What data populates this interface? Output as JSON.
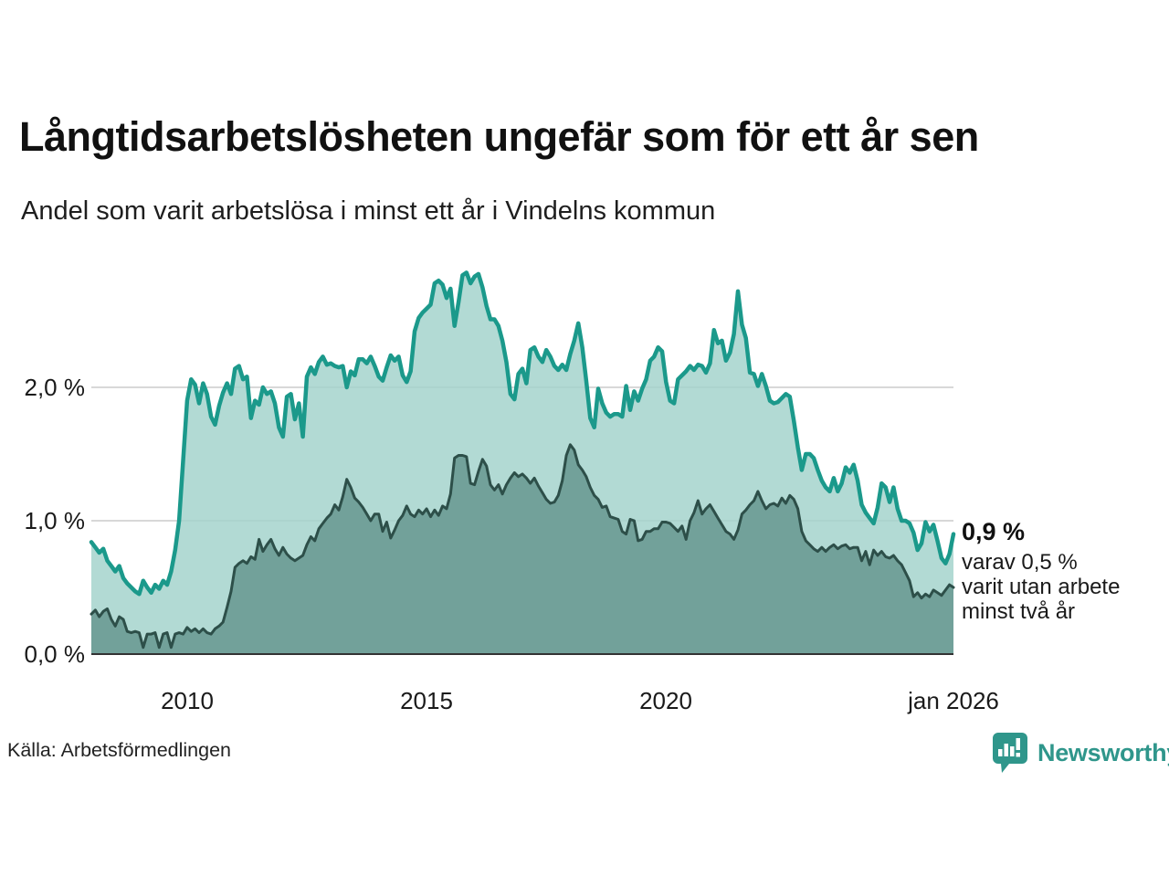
{
  "title": "Långtidsarbetslösheten ungefär som för ett år sen",
  "subtitle": "Andel som varit arbetslösa i minst ett år i Vindelns kommun",
  "source": "Källa: Arbetsförmedlingen",
  "brand": {
    "name": "Newsworthy",
    "color": "#2f968b"
  },
  "annotation": {
    "value_label": "0,9 %",
    "line1": "varav 0,5 %",
    "line2": "varit utan arbete",
    "line3": "minst två år"
  },
  "colors": {
    "total_line": "#1b998b",
    "total_fill": "#a5d4cd",
    "two_year_line": "#2d4f49",
    "two_year_fill": "#6f9e97",
    "grid": "#cccccc",
    "axis": "#333333",
    "text": "#1a1a1a"
  },
  "chart_data": {
    "type": "area",
    "title": "Långtidsarbetslösheten ungefär som för ett år sen",
    "subtitle": "Andel som varit arbetslösa i minst ett år i Vindelns kommun",
    "unit": "%",
    "frequency": "monthly",
    "x_start": "jan 2008",
    "x_end": "jan 2026",
    "ylim": [
      0,
      2.95
    ],
    "grid": "horizontal",
    "legend": "none",
    "y_ticks": [
      {
        "label": "2,0 %",
        "value": 2.0
      },
      {
        "label": "1,0 %",
        "value": 1.0
      },
      {
        "label": "0,0 %",
        "value": 0.0
      }
    ],
    "x_ticks": [
      {
        "label": "2010",
        "index": 24
      },
      {
        "label": "2015",
        "index": 84
      },
      {
        "label": "2020",
        "index": 144
      },
      {
        "label": "jan 2026",
        "index": 216
      }
    ],
    "series": [
      {
        "name": "arbetslösa minst ett år",
        "end_value": 0.9,
        "values": [
          0.84,
          0.8,
          0.76,
          0.79,
          0.7,
          0.66,
          0.62,
          0.66,
          0.57,
          0.53,
          0.5,
          0.47,
          0.45,
          0.55,
          0.5,
          0.46,
          0.52,
          0.49,
          0.55,
          0.52,
          0.62,
          0.78,
          1.0,
          1.45,
          1.9,
          2.06,
          2.02,
          1.88,
          2.03,
          1.95,
          1.78,
          1.72,
          1.86,
          1.96,
          2.03,
          1.95,
          2.14,
          2.16,
          2.06,
          2.08,
          1.77,
          1.9,
          1.87,
          2.0,
          1.95,
          1.97,
          1.88,
          1.7,
          1.63,
          1.93,
          1.95,
          1.76,
          1.88,
          1.63,
          2.08,
          2.15,
          2.1,
          2.19,
          2.23,
          2.17,
          2.18,
          2.16,
          2.15,
          2.16,
          2.0,
          2.12,
          2.09,
          2.21,
          2.21,
          2.18,
          2.23,
          2.16,
          2.08,
          2.05,
          2.15,
          2.24,
          2.2,
          2.23,
          2.09,
          2.04,
          2.12,
          2.42,
          2.52,
          2.56,
          2.59,
          2.62,
          2.78,
          2.8,
          2.77,
          2.67,
          2.74,
          2.46,
          2.64,
          2.84,
          2.86,
          2.78,
          2.83,
          2.85,
          2.75,
          2.61,
          2.51,
          2.51,
          2.46,
          2.35,
          2.19,
          1.95,
          1.91,
          2.1,
          2.14,
          2.03,
          2.28,
          2.3,
          2.23,
          2.19,
          2.28,
          2.23,
          2.16,
          2.13,
          2.17,
          2.13,
          2.25,
          2.35,
          2.48,
          2.3,
          2.05,
          1.77,
          1.7,
          1.99,
          1.88,
          1.81,
          1.78,
          1.8,
          1.8,
          1.78,
          2.01,
          1.83,
          1.97,
          1.9,
          1.99,
          2.06,
          2.2,
          2.23,
          2.3,
          2.27,
          2.04,
          1.9,
          1.88,
          2.06,
          2.09,
          2.12,
          2.16,
          2.13,
          2.17,
          2.16,
          2.11,
          2.18,
          2.43,
          2.33,
          2.35,
          2.2,
          2.26,
          2.4,
          2.72,
          2.47,
          2.37,
          2.11,
          2.1,
          2.01,
          2.1,
          2.01,
          1.9,
          1.88,
          1.89,
          1.92,
          1.95,
          1.93,
          1.75,
          1.55,
          1.38,
          1.5,
          1.5,
          1.47,
          1.38,
          1.3,
          1.25,
          1.22,
          1.32,
          1.22,
          1.28,
          1.4,
          1.36,
          1.42,
          1.3,
          1.12,
          1.06,
          1.02,
          0.98,
          1.1,
          1.28,
          1.25,
          1.14,
          1.25,
          1.09,
          1.0,
          1.0,
          0.98,
          0.91,
          0.78,
          0.83,
          0.99,
          0.92,
          0.97,
          0.85,
          0.72,
          0.68,
          0.75,
          0.9
        ]
      },
      {
        "name": "utan arbete minst två år",
        "end_value": 0.5,
        "values": [
          0.3,
          0.33,
          0.28,
          0.32,
          0.34,
          0.26,
          0.21,
          0.28,
          0.26,
          0.17,
          0.16,
          0.17,
          0.16,
          0.05,
          0.15,
          0.15,
          0.16,
          0.05,
          0.15,
          0.16,
          0.05,
          0.15,
          0.16,
          0.15,
          0.2,
          0.17,
          0.19,
          0.16,
          0.19,
          0.16,
          0.15,
          0.19,
          0.21,
          0.24,
          0.35,
          0.47,
          0.65,
          0.68,
          0.7,
          0.68,
          0.73,
          0.71,
          0.86,
          0.77,
          0.82,
          0.86,
          0.79,
          0.74,
          0.8,
          0.75,
          0.72,
          0.7,
          0.72,
          0.74,
          0.82,
          0.88,
          0.85,
          0.94,
          0.98,
          1.02,
          1.05,
          1.12,
          1.08,
          1.18,
          1.31,
          1.25,
          1.17,
          1.14,
          1.1,
          1.05,
          1.0,
          1.05,
          1.05,
          0.92,
          0.99,
          0.87,
          0.93,
          1.0,
          1.04,
          1.11,
          1.05,
          1.03,
          1.08,
          1.05,
          1.09,
          1.03,
          1.08,
          1.04,
          1.11,
          1.09,
          1.2,
          1.47,
          1.49,
          1.49,
          1.48,
          1.28,
          1.27,
          1.37,
          1.46,
          1.41,
          1.27,
          1.23,
          1.27,
          1.2,
          1.27,
          1.32,
          1.36,
          1.33,
          1.35,
          1.32,
          1.28,
          1.32,
          1.26,
          1.21,
          1.16,
          1.13,
          1.14,
          1.19,
          1.3,
          1.49,
          1.57,
          1.53,
          1.42,
          1.38,
          1.33,
          1.25,
          1.19,
          1.16,
          1.1,
          1.11,
          1.03,
          1.02,
          1.01,
          0.92,
          0.9,
          1.01,
          1.0,
          0.85,
          0.86,
          0.92,
          0.92,
          0.94,
          0.94,
          0.99,
          0.99,
          0.98,
          0.95,
          0.92,
          0.96,
          0.86,
          1.0,
          1.06,
          1.15,
          1.05,
          1.09,
          1.12,
          1.07,
          1.02,
          0.97,
          0.92,
          0.9,
          0.86,
          0.93,
          1.05,
          1.08,
          1.12,
          1.15,
          1.22,
          1.15,
          1.09,
          1.12,
          1.13,
          1.11,
          1.17,
          1.13,
          1.19,
          1.16,
          1.09,
          0.92,
          0.85,
          0.82,
          0.79,
          0.77,
          0.8,
          0.77,
          0.8,
          0.82,
          0.79,
          0.81,
          0.82,
          0.79,
          0.8,
          0.8,
          0.7,
          0.77,
          0.67,
          0.78,
          0.74,
          0.77,
          0.73,
          0.72,
          0.74,
          0.7,
          0.67,
          0.61,
          0.55,
          0.43,
          0.46,
          0.42,
          0.45,
          0.43,
          0.48,
          0.46,
          0.44,
          0.48,
          0.52,
          0.5
        ]
      }
    ]
  }
}
